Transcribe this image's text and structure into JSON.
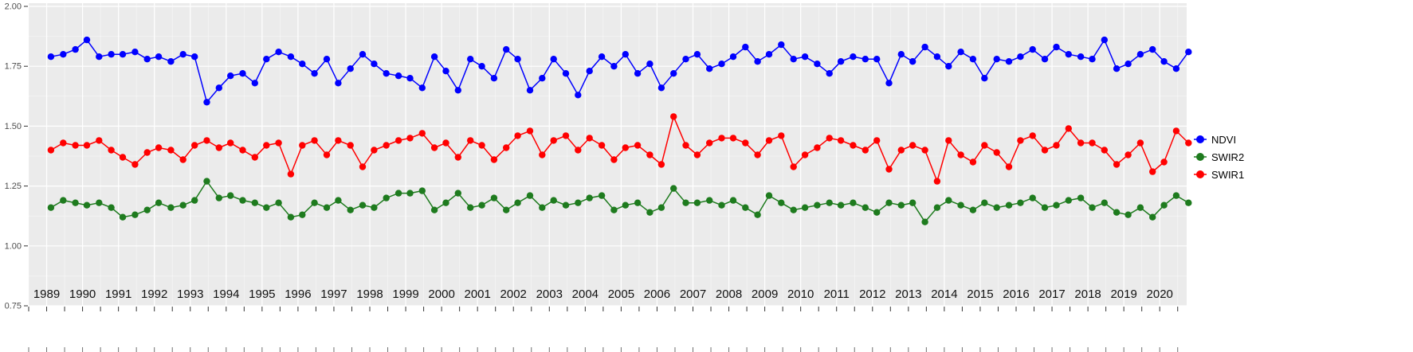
{
  "figure": {
    "background": "#FFFFFF",
    "panel_background": "#EBEBEB",
    "grid_major_color": "#FFFFFF",
    "grid_minor_color": "#F7F7F7",
    "tick_color": "#333333",
    "axis_text_color": "#4D4D4D",
    "year_text_color": "#111111"
  },
  "legend": {
    "position": "right",
    "items": [
      {
        "label": "NDVI",
        "color": "#0000FF"
      },
      {
        "label": "SWIR2",
        "color": "#1E7B1E"
      },
      {
        "label": "SWIR1",
        "color": "#FF0000"
      }
    ]
  },
  "chart_data": {
    "type": "line",
    "title": "",
    "xlabel": "",
    "ylabel": "",
    "grid": "on",
    "legend_position": "right",
    "ylim": [
      0.75,
      2.0
    ],
    "yticks": [
      0.75,
      1.0,
      1.25,
      1.5,
      1.75,
      2.0
    ],
    "ytick_labels": [
      "0.75",
      "1.00",
      "1.25",
      "1.50",
      "1.75",
      "2.00"
    ],
    "xlim": [
      1988.5,
      2020.75
    ],
    "years": [
      1989,
      1990,
      1991,
      1992,
      1993,
      1994,
      1995,
      1996,
      1997,
      1998,
      1999,
      2000,
      2001,
      2002,
      2003,
      2004,
      2005,
      2006,
      2007,
      2008,
      2009,
      2010,
      2011,
      2012,
      2013,
      2014,
      2015,
      2016,
      2017,
      2018,
      2019,
      2020
    ],
    "x_offsets": [
      0.12,
      0.46,
      0.8
    ],
    "series": [
      {
        "name": "SWIR1",
        "color": "#FF0000",
        "values": [
          1.4,
          1.43,
          1.42,
          1.42,
          1.44,
          1.4,
          1.37,
          1.34,
          1.39,
          1.41,
          1.4,
          1.36,
          1.42,
          1.44,
          1.41,
          1.43,
          1.4,
          1.37,
          1.42,
          1.43,
          1.3,
          1.42,
          1.44,
          1.38,
          1.44,
          1.42,
          1.33,
          1.4,
          1.42,
          1.44,
          1.45,
          1.47,
          1.41,
          1.43,
          1.37,
          1.44,
          1.42,
          1.36,
          1.41,
          1.46,
          1.48,
          1.38,
          1.44,
          1.46,
          1.4,
          1.45,
          1.42,
          1.36,
          1.41,
          1.42,
          1.38,
          1.34,
          1.54,
          1.42,
          1.38,
          1.43,
          1.45,
          1.45,
          1.43,
          1.38,
          1.44,
          1.46,
          1.33,
          1.38,
          1.41,
          1.45,
          1.44,
          1.42,
          1.4,
          1.44,
          1.32,
          1.4,
          1.42,
          1.4,
          1.27,
          1.44,
          1.38,
          1.35,
          1.42,
          1.39,
          1.33,
          1.44,
          1.46,
          1.4,
          1.42,
          1.49,
          1.43,
          1.43,
          1.4,
          1.34,
          1.38,
          1.43,
          1.31,
          1.35,
          1.48,
          1.43
        ]
      },
      {
        "name": "SWIR2",
        "color": "#1E7B1E",
        "values": [
          1.16,
          1.19,
          1.18,
          1.17,
          1.18,
          1.16,
          1.12,
          1.13,
          1.15,
          1.18,
          1.16,
          1.17,
          1.19,
          1.27,
          1.2,
          1.21,
          1.19,
          1.18,
          1.16,
          1.18,
          1.12,
          1.13,
          1.18,
          1.16,
          1.19,
          1.15,
          1.17,
          1.16,
          1.2,
          1.22,
          1.22,
          1.23,
          1.15,
          1.18,
          1.22,
          1.16,
          1.17,
          1.2,
          1.15,
          1.18,
          1.21,
          1.16,
          1.19,
          1.17,
          1.18,
          1.2,
          1.21,
          1.15,
          1.17,
          1.18,
          1.14,
          1.16,
          1.24,
          1.18,
          1.18,
          1.19,
          1.17,
          1.19,
          1.16,
          1.13,
          1.21,
          1.18,
          1.15,
          1.16,
          1.17,
          1.18,
          1.17,
          1.18,
          1.16,
          1.14,
          1.18,
          1.17,
          1.18,
          1.1,
          1.16,
          1.19,
          1.17,
          1.15,
          1.18,
          1.16,
          1.17,
          1.18,
          1.2,
          1.16,
          1.17,
          1.19,
          1.2,
          1.16,
          1.18,
          1.14,
          1.13,
          1.16,
          1.12,
          1.17,
          1.21,
          1.18
        ]
      },
      {
        "name": "NDVI",
        "color": "#0000FF",
        "values": [
          1.79,
          1.8,
          1.82,
          1.86,
          1.79,
          1.8,
          1.8,
          1.81,
          1.78,
          1.79,
          1.77,
          1.8,
          1.79,
          1.6,
          1.66,
          1.71,
          1.72,
          1.68,
          1.78,
          1.81,
          1.79,
          1.76,
          1.72,
          1.78,
          1.68,
          1.74,
          1.8,
          1.76,
          1.72,
          1.71,
          1.7,
          1.66,
          1.79,
          1.73,
          1.65,
          1.78,
          1.75,
          1.7,
          1.82,
          1.78,
          1.65,
          1.7,
          1.78,
          1.72,
          1.63,
          1.73,
          1.79,
          1.75,
          1.8,
          1.72,
          1.76,
          1.66,
          1.72,
          1.78,
          1.8,
          1.74,
          1.76,
          1.79,
          1.83,
          1.77,
          1.8,
          1.84,
          1.78,
          1.79,
          1.76,
          1.72,
          1.77,
          1.79,
          1.78,
          1.78,
          1.68,
          1.8,
          1.77,
          1.83,
          1.79,
          1.75,
          1.81,
          1.78,
          1.7,
          1.78,
          1.77,
          1.79,
          1.82,
          1.78,
          1.83,
          1.8,
          1.79,
          1.78,
          1.86,
          1.74,
          1.76,
          1.8,
          1.82,
          1.77,
          1.74,
          1.81
        ]
      }
    ]
  }
}
